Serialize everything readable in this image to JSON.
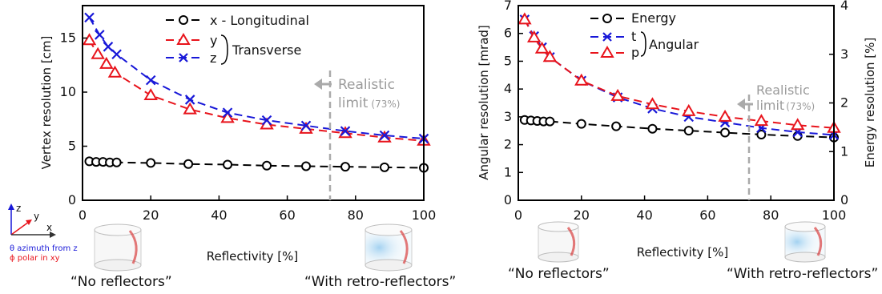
{
  "chart_data": [
    {
      "type": "line",
      "xlabel": "Reflectivity [%]",
      "ylabel": "Vertex resolution [cm]",
      "xlim": [
        0,
        100
      ],
      "ylim": [
        0,
        18
      ],
      "xticks": [
        "0",
        "20",
        "40",
        "60",
        "80",
        "100"
      ],
      "yticks": [
        "0",
        "5",
        "10",
        "15"
      ],
      "grid": false,
      "legend_position": "top-left",
      "legend_group_label": "Transverse",
      "series": [
        {
          "name": "x - Longitudinal",
          "color": "#000000",
          "marker": "circle",
          "x": [
            2,
            4,
            6,
            8,
            10,
            20,
            31,
            42.5,
            54,
            65.5,
            77,
            88.5,
            100
          ],
          "y": [
            3.6,
            3.55,
            3.55,
            3.5,
            3.5,
            3.45,
            3.35,
            3.3,
            3.2,
            3.15,
            3.1,
            3.05,
            3.0
          ]
        },
        {
          "name": "y",
          "color": "#e8141c",
          "marker": "triangle",
          "x": [
            2,
            4.5,
            7,
            9.5,
            20,
            31.5,
            42.5,
            54,
            65.5,
            77,
            88.5,
            100
          ],
          "y": [
            14.8,
            13.5,
            12.6,
            11.8,
            9.7,
            8.4,
            7.6,
            7.0,
            6.6,
            6.2,
            5.8,
            5.5
          ]
        },
        {
          "name": "z",
          "color": "#1818d8",
          "marker": "cross",
          "x": [
            2,
            5,
            7.5,
            10,
            20,
            31.5,
            42.5,
            54,
            65.5,
            77,
            88.5,
            100
          ],
          "y": [
            16.9,
            15.3,
            14.2,
            13.5,
            11.1,
            9.3,
            8.1,
            7.4,
            6.9,
            6.4,
            6.0,
            5.7
          ]
        }
      ],
      "annotation": {
        "text": "Realistic",
        "text2": "limit",
        "subtext": "(73%)",
        "x": 73
      }
    },
    {
      "type": "line",
      "xlabel": "Reflectivity [%]",
      "ylabel": "Angular resolution [mrad]",
      "ylabel_right": "Energy resolution [%]",
      "xlim": [
        0,
        100
      ],
      "ylim": [
        0,
        7
      ],
      "ylim_right": [
        0,
        4
      ],
      "xticks": [
        "0",
        "20",
        "40",
        "60",
        "80",
        "100"
      ],
      "yticks": [
        "0",
        "1",
        "2",
        "3",
        "4",
        "5",
        "6",
        "7"
      ],
      "yticks_right": [
        "0",
        "1",
        "2",
        "3",
        "4"
      ],
      "grid": false,
      "legend_position": "top-left",
      "legend_group_label": "Angular",
      "series": [
        {
          "name": "Energy",
          "color": "#000000",
          "marker": "circle",
          "axis": "right",
          "x": [
            2,
            4,
            6,
            8,
            10,
            20,
            31,
            42.5,
            54,
            65.5,
            77,
            88.5,
            100
          ],
          "y": [
            1.65,
            1.64,
            1.63,
            1.62,
            1.62,
            1.57,
            1.52,
            1.47,
            1.43,
            1.39,
            1.35,
            1.32,
            1.29
          ]
        },
        {
          "name": "t",
          "color": "#1818d8",
          "marker": "cross",
          "x": [
            2,
            5,
            7.5,
            10,
            20,
            31.5,
            42.5,
            54,
            65.5,
            77,
            88.5,
            100
          ],
          "y": [
            6.5,
            5.9,
            5.5,
            5.15,
            4.3,
            3.7,
            3.3,
            3.0,
            2.8,
            2.6,
            2.45,
            2.35
          ]
        },
        {
          "name": "p",
          "color": "#e8141c",
          "marker": "triangle",
          "x": [
            2,
            5,
            7.5,
            10,
            20,
            31.5,
            42.5,
            54,
            65.5,
            77,
            88.5,
            100
          ],
          "y": [
            6.5,
            5.85,
            5.45,
            5.15,
            4.3,
            3.75,
            3.45,
            3.2,
            3.0,
            2.85,
            2.7,
            2.6
          ]
        }
      ],
      "annotation": {
        "text": "Realistic",
        "text2": "limit",
        "subtext": "(73%)",
        "x": 73
      }
    }
  ],
  "captions": {
    "left_low": "“No reflectors”",
    "left_high": "“With retro-reflectors”",
    "right_low": "“No reflectors”",
    "right_high": "“With retro-reflectors”"
  },
  "coordinate_inset": {
    "axis_z": "z",
    "axis_y": "y",
    "axis_x": "x",
    "theta_note": "θ azimuth from z",
    "phi_note": "ϕ polar in xy",
    "colors": {
      "z": "#1818d8",
      "y": "#e8141c",
      "x": "#333333"
    }
  }
}
